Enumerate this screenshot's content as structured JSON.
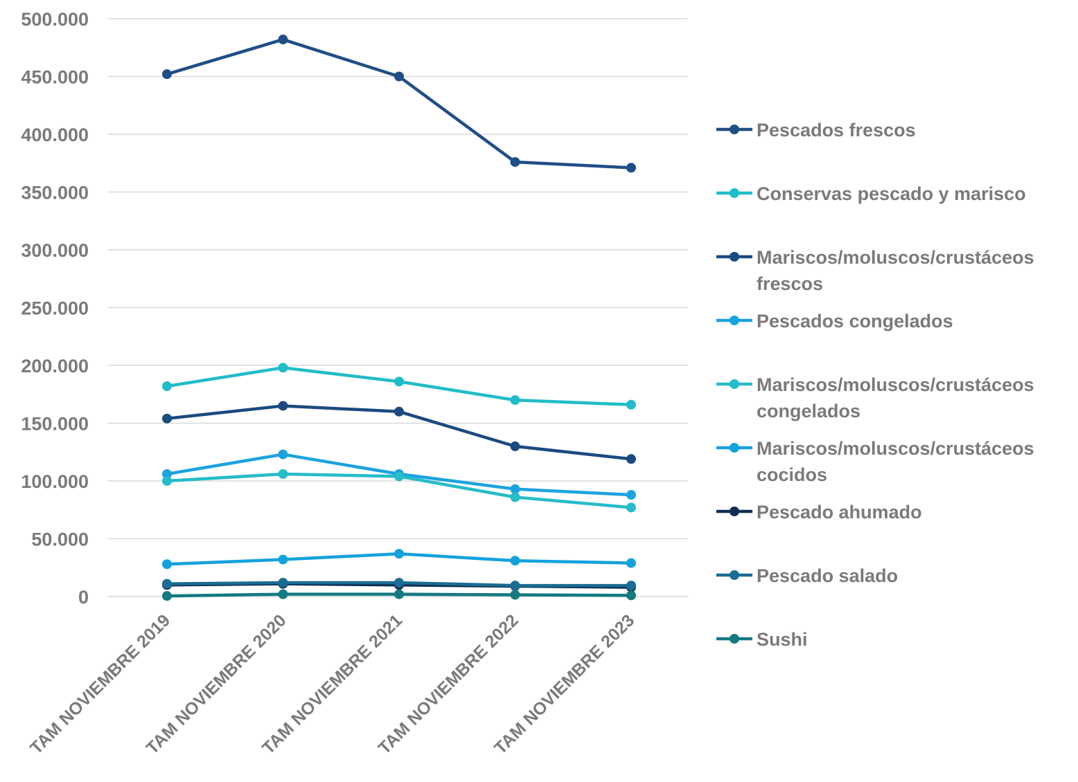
{
  "chart_data": {
    "type": "line",
    "title": "",
    "xlabel": "",
    "ylabel": "",
    "categories": [
      "TAM NOVIEMBRE 2019",
      "TAM NOVIEMBRE 2020",
      "TAM NOVIEMBRE 2021",
      "TAM NOVIEMBRE 2022",
      "TAM NOVIEMBRE 2023"
    ],
    "ylim": [
      0,
      500000
    ],
    "yticks": [
      {
        "value": 0,
        "label": "0"
      },
      {
        "value": 50000,
        "label": "50.000"
      },
      {
        "value": 100000,
        "label": "100.000"
      },
      {
        "value": 150000,
        "label": "150.000"
      },
      {
        "value": 200000,
        "label": "200.000"
      },
      {
        "value": 250000,
        "label": "250.000"
      },
      {
        "value": 300000,
        "label": "300.000"
      },
      {
        "value": 350000,
        "label": "350.000"
      },
      {
        "value": 400000,
        "label": "400.000"
      },
      {
        "value": 450000,
        "label": "450.000"
      },
      {
        "value": 500000,
        "label": "500.000"
      }
    ],
    "grid": true,
    "legend_position": "right",
    "series": [
      {
        "name": "Pescados frescos",
        "name_lines": [
          "Pescados frescos"
        ],
        "color": "#1f4e86",
        "values": [
          452000,
          482000,
          450000,
          376000,
          371000
        ]
      },
      {
        "name": "Conservas pescado y marisco",
        "name_lines": [
          "Conservas pescado y marisco"
        ],
        "color": "#21bcc9",
        "values": [
          182000,
          198000,
          186000,
          170000,
          166000
        ]
      },
      {
        "name": "Mariscos/moluscos/crustáceos frescos",
        "name_lines": [
          "Mariscos/moluscos/crustáceos",
          "frescos"
        ],
        "color": "#1a4a80",
        "values": [
          154000,
          165000,
          160000,
          130000,
          119000
        ]
      },
      {
        "name": "Pescados congelados",
        "name_lines": [
          "Pescados congelados"
        ],
        "color": "#1ba3df",
        "values": [
          106000,
          123000,
          106000,
          93000,
          88000
        ]
      },
      {
        "name": "Mariscos/moluscos/crustáceos congelados",
        "name_lines": [
          "Mariscos/moluscos/crustáceos",
          "congelados"
        ],
        "color": "#26bcc9",
        "values": [
          100000,
          106000,
          104000,
          86000,
          77000
        ]
      },
      {
        "name": "Mariscos/moluscos/crustáceos cocidos",
        "name_lines": [
          "Mariscos/moluscos/crustáceos",
          "cocidos"
        ],
        "color": "#14a2dd",
        "values": [
          28000,
          32000,
          37000,
          31000,
          29000
        ]
      },
      {
        "name": "Pescado ahumado",
        "name_lines": [
          "Pescado ahumado"
        ],
        "color": "#0f2d52",
        "values": [
          10000,
          11000,
          10000,
          9000,
          8000
        ]
      },
      {
        "name": "Pescado salado",
        "name_lines": [
          "Pescado salado"
        ],
        "color": "#1a6c92",
        "values": [
          11000,
          12000,
          12000,
          9500,
          9500
        ]
      },
      {
        "name": "Sushi",
        "name_lines": [
          "Sushi"
        ],
        "color": "#147a80",
        "values": [
          500,
          2000,
          2000,
          1500,
          1000
        ]
      }
    ]
  }
}
